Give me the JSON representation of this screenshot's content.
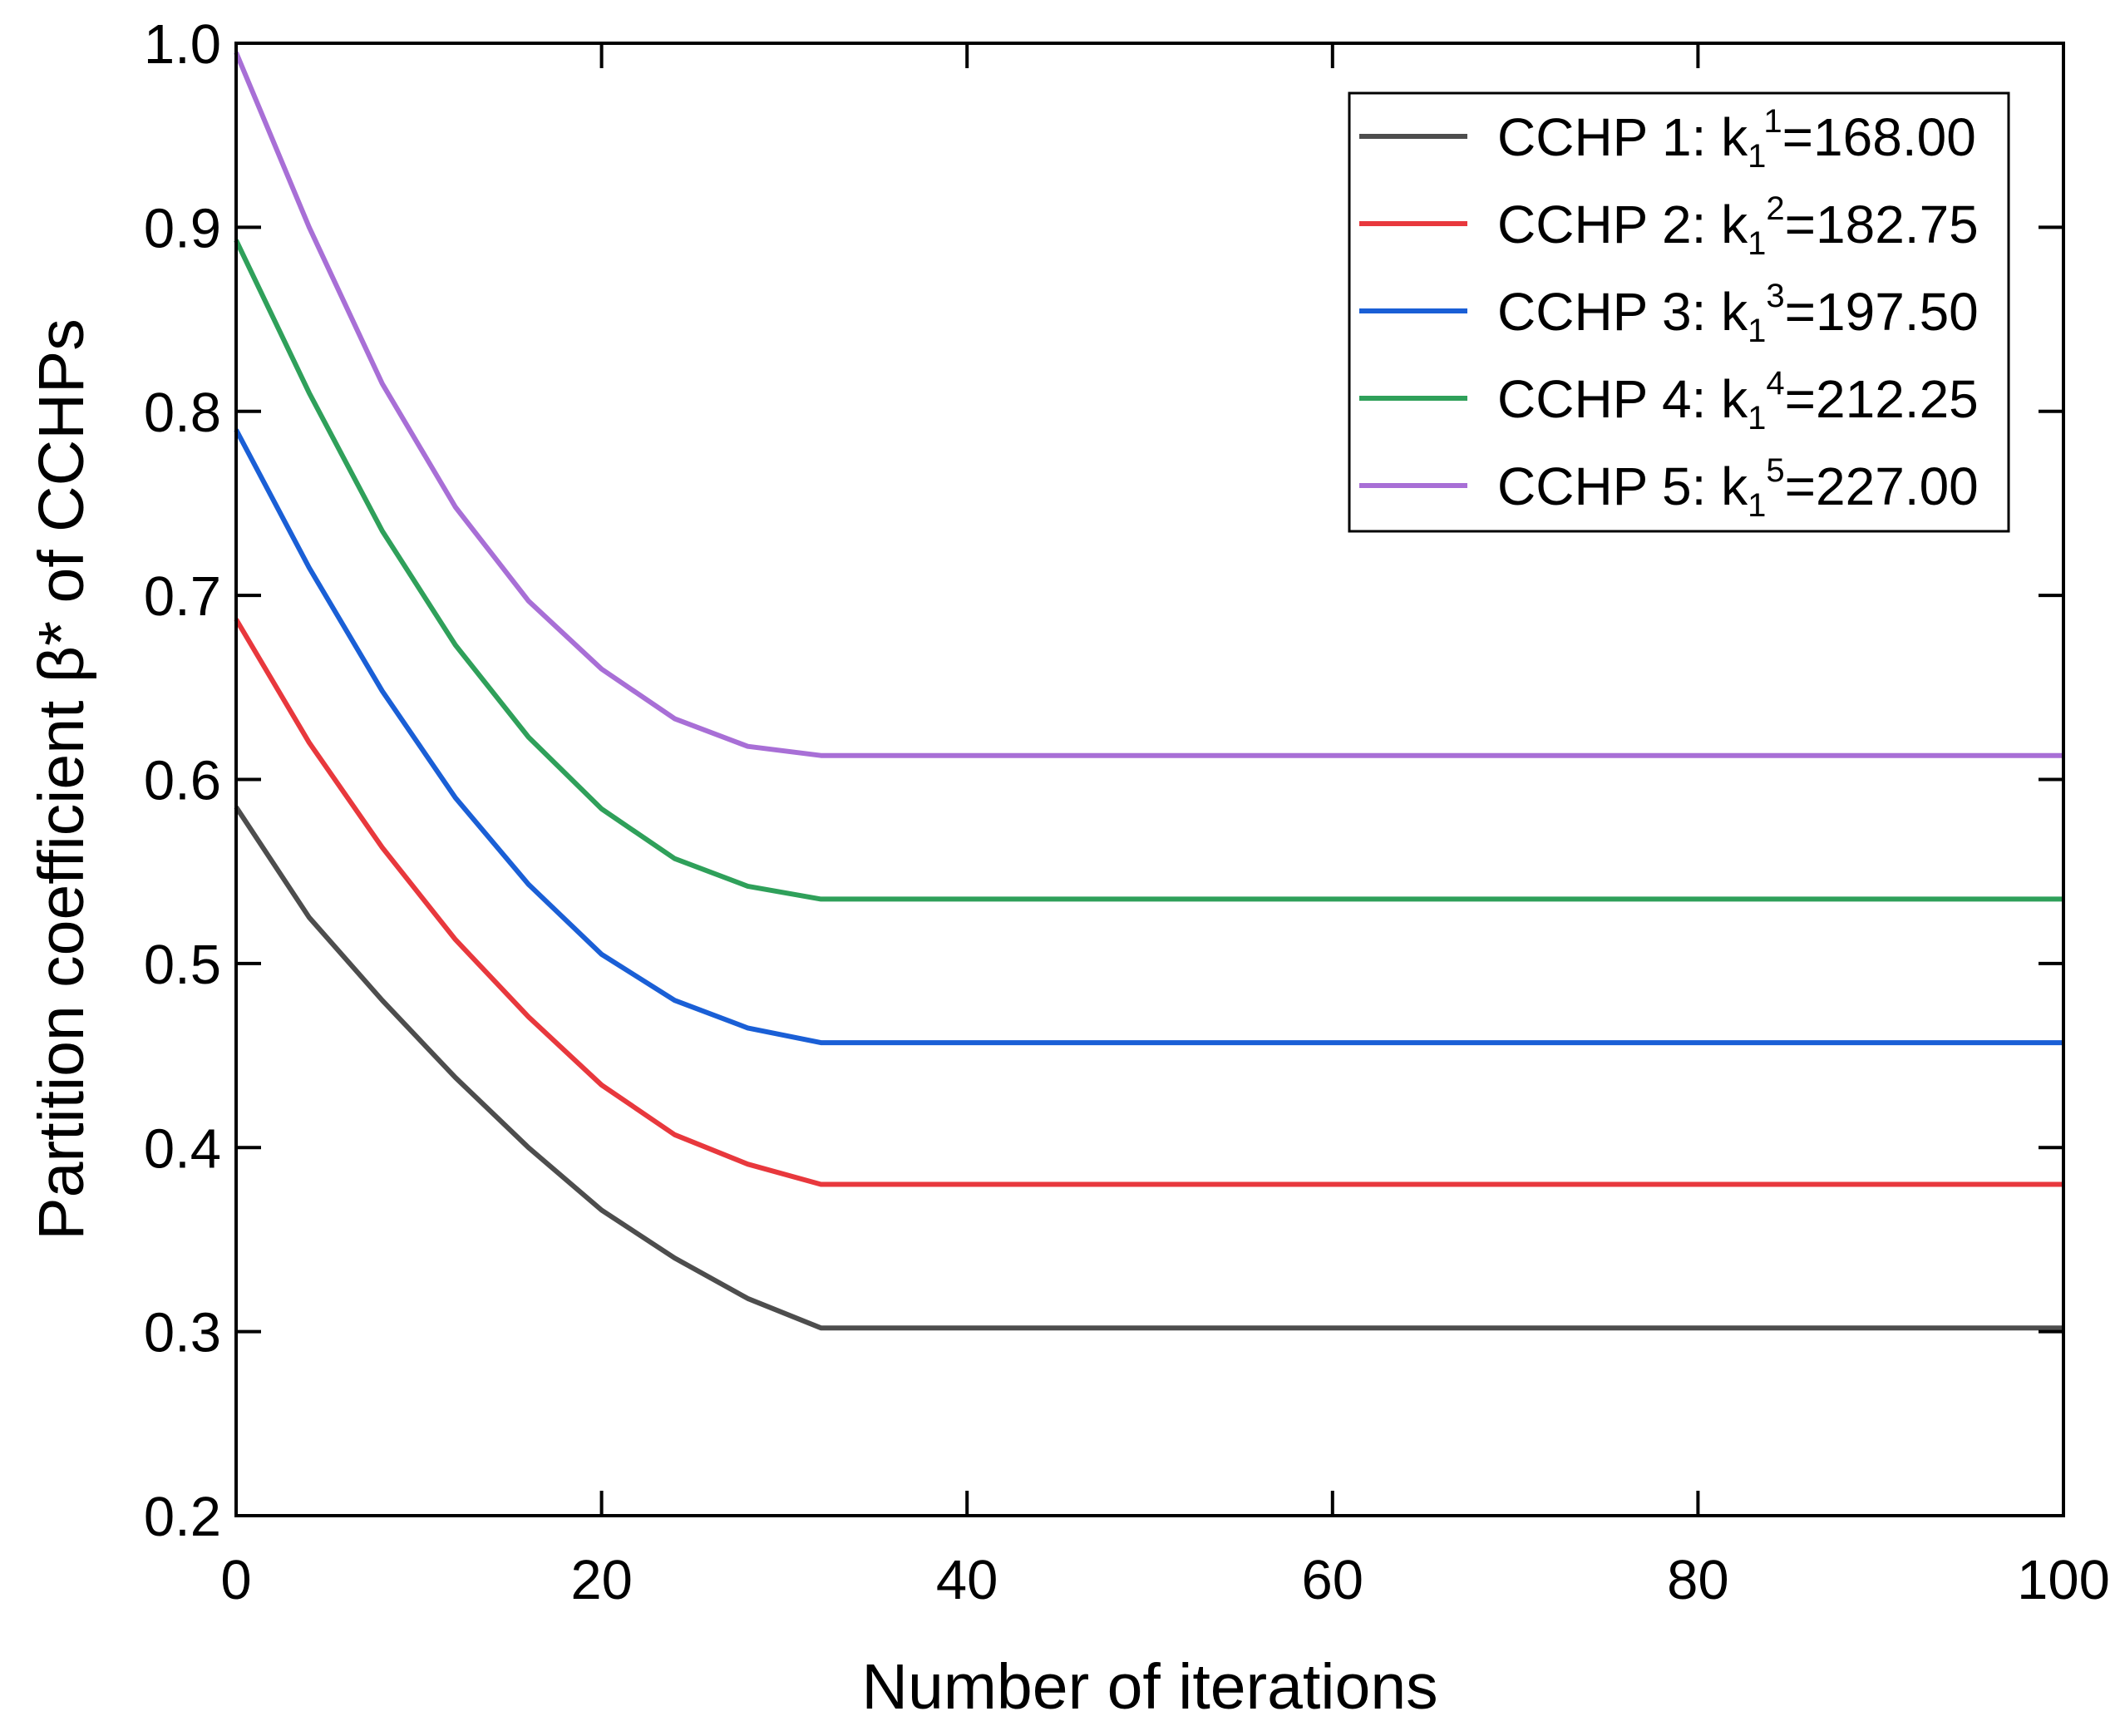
{
  "chart_data": {
    "type": "line",
    "title": "",
    "xlabel": "Number of iterations",
    "ylabel": "Partition coefficient β* of CCHPs",
    "xlim": [
      0,
      100
    ],
    "ylim": [
      0.2,
      1.0
    ],
    "x_ticks": [
      "0",
      "20",
      "40",
      "60",
      "80",
      "100"
    ],
    "y_ticks": [
      "0.2",
      "0.3",
      "0.4",
      "0.5",
      "0.6",
      "0.7",
      "0.8",
      "0.9",
      "1.0"
    ],
    "grid": false,
    "legend_position": "top-right",
    "series": [
      {
        "name": "CCHP 1: k",
        "sub": "1",
        "sup": "1",
        "value_label": "=168.00",
        "color": "#4d4d4d",
        "x": [
          0,
          4,
          8,
          12,
          16,
          20,
          24,
          28,
          32,
          100
        ],
        "y": [
          0.585,
          0.525,
          0.48,
          0.438,
          0.4,
          0.366,
          0.34,
          0.318,
          0.302,
          0.302
        ]
      },
      {
        "name": "CCHP 2: k",
        "sub": "1",
        "sup": "2",
        "value_label": "=182.75",
        "color": "#e8383d",
        "x": [
          0,
          4,
          8,
          12,
          16,
          20,
          24,
          28,
          32,
          100
        ],
        "y": [
          0.687,
          0.62,
          0.563,
          0.513,
          0.471,
          0.434,
          0.407,
          0.391,
          0.38,
          0.38
        ]
      },
      {
        "name": "CCHP 3: k",
        "sub": "1",
        "sup": "3",
        "value_label": "=197.50",
        "color": "#1a5fd6",
        "x": [
          0,
          4,
          8,
          12,
          16,
          20,
          24,
          28,
          32,
          100
        ],
        "y": [
          0.79,
          0.715,
          0.648,
          0.59,
          0.543,
          0.505,
          0.48,
          0.465,
          0.457,
          0.457
        ]
      },
      {
        "name": "CCHP 4: k",
        "sub": "1",
        "sup": "4",
        "value_label": "=212.25",
        "color": "#2fa05a",
        "x": [
          0,
          4,
          8,
          12,
          16,
          20,
          24,
          28,
          32,
          100
        ],
        "y": [
          0.893,
          0.81,
          0.735,
          0.673,
          0.623,
          0.584,
          0.557,
          0.542,
          0.535,
          0.535
        ]
      },
      {
        "name": "CCHP 5: k",
        "sub": "1",
        "sup": "5",
        "value_label": "=227.00",
        "color": "#a86fd6",
        "x": [
          0,
          4,
          8,
          12,
          16,
          20,
          24,
          28,
          32,
          100
        ],
        "y": [
          0.995,
          0.9,
          0.815,
          0.748,
          0.697,
          0.66,
          0.633,
          0.618,
          0.613,
          0.613
        ]
      }
    ]
  }
}
